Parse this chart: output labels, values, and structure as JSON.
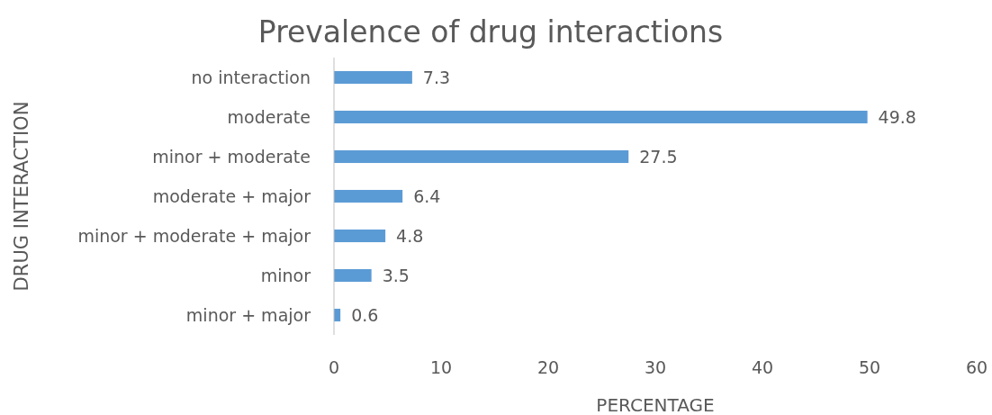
{
  "chart_data": {
    "type": "bar",
    "orientation": "horizontal",
    "title": "Prevalence of drug interactions",
    "xlabel": "PERCENTAGE",
    "ylabel": "DRUG INTERACTION",
    "categories": [
      "no interaction",
      "moderate",
      "minor + moderate",
      "moderate + major",
      "minor + moderate + major",
      "minor",
      "minor + major"
    ],
    "values": [
      7.3,
      49.8,
      27.5,
      6.4,
      4.8,
      3.5,
      0.6
    ],
    "color": "#5b9bd5",
    "xlim": [
      0,
      60
    ],
    "xticks": [
      0,
      10,
      20,
      30,
      40,
      50,
      60
    ],
    "grid": false,
    "data_labels": true
  }
}
